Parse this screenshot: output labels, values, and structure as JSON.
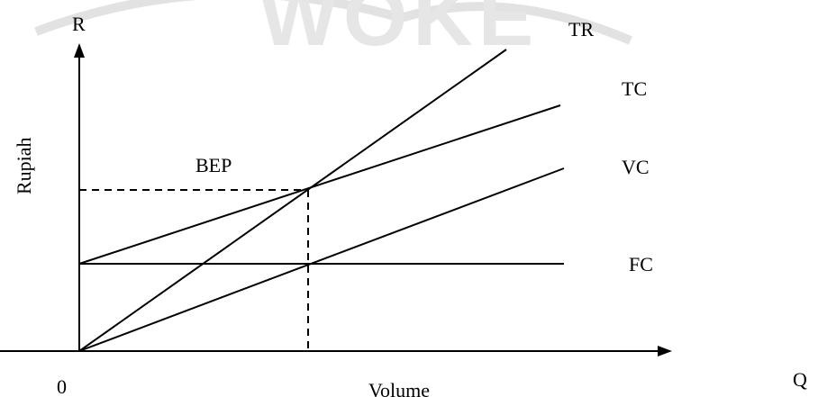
{
  "watermark": {
    "text": "WOKE"
  },
  "axes": {
    "y_axis_letter": "R",
    "y_axis_title": "Rupiah",
    "x_axis_letter": "Q",
    "x_axis_title": "Volume",
    "origin_label": "0"
  },
  "lines": {
    "tr_label": "TR",
    "tc_label": "TC",
    "vc_label": "VC",
    "fc_label": "FC"
  },
  "break_even": {
    "label": "BEP"
  }
}
